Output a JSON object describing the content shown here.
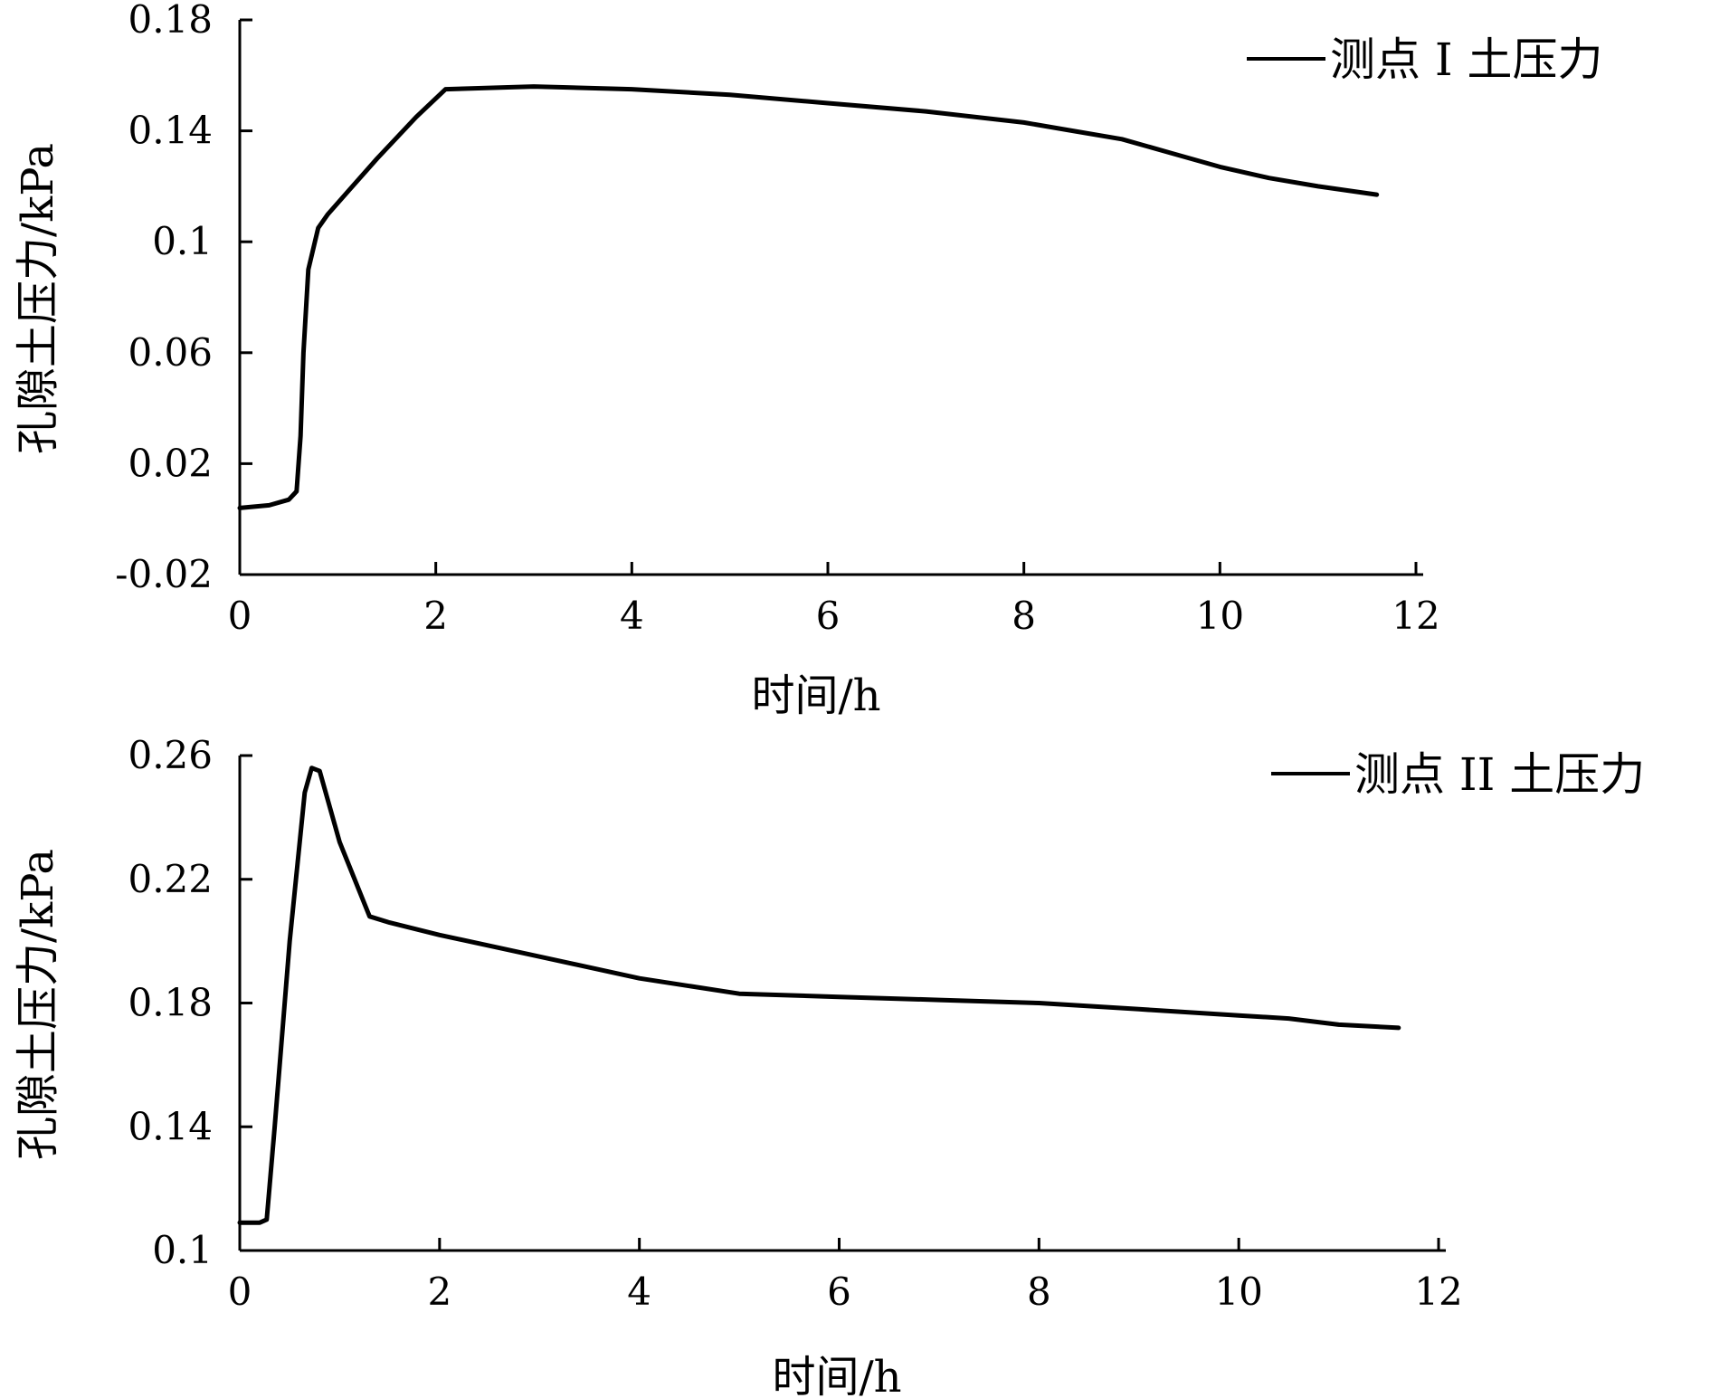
{
  "chart_data": [
    {
      "type": "line",
      "xlabel": "时间/h",
      "ylabel": "孔隙土压力/kPa",
      "xlim": [
        0,
        12
      ],
      "ylim": [
        -0.02,
        0.18
      ],
      "xticks": [
        0,
        2,
        4,
        6,
        8,
        10,
        12
      ],
      "xtick_labels": [
        "0",
        "2",
        "4",
        "6",
        "8",
        "10",
        "12"
      ],
      "yticks": [
        -0.02,
        0.02,
        0.06,
        0.1,
        0.14,
        0.18
      ],
      "ytick_labels": [
        "-0.02",
        "0.02",
        "0.06",
        "0.1",
        "0.14",
        "0.18"
      ],
      "grid": false,
      "legend_position": "top-right",
      "line_color": "#000000",
      "series": [
        {
          "name": "测点 I 土压力",
          "x": [
            0,
            0.3,
            0.5,
            0.58,
            0.62,
            0.65,
            0.7,
            0.8,
            0.9,
            1.1,
            1.4,
            1.8,
            2.1,
            3.0,
            4.0,
            5.0,
            6.0,
            7.0,
            8.0,
            8.5,
            9.0,
            9.5,
            10.0,
            10.5,
            11.0,
            11.6
          ],
          "y": [
            0.004,
            0.005,
            0.007,
            0.01,
            0.03,
            0.06,
            0.09,
            0.105,
            0.11,
            0.118,
            0.13,
            0.145,
            0.155,
            0.156,
            0.155,
            0.153,
            0.15,
            0.147,
            0.143,
            0.14,
            0.137,
            0.132,
            0.127,
            0.123,
            0.12,
            0.117
          ]
        }
      ]
    },
    {
      "type": "line",
      "xlabel": "时间/h",
      "ylabel": "孔隙土压力/kPa",
      "xlim": [
        0,
        12
      ],
      "ylim": [
        0.1,
        0.26
      ],
      "xticks": [
        0,
        2,
        4,
        6,
        8,
        10,
        12
      ],
      "xtick_labels": [
        "0",
        "2",
        "4",
        "6",
        "8",
        "10",
        "12"
      ],
      "yticks": [
        0.1,
        0.14,
        0.18,
        0.22,
        0.26
      ],
      "ytick_labels": [
        "0.1",
        "0.14",
        "0.18",
        "0.22",
        "0.26"
      ],
      "grid": false,
      "legend_position": "top-right",
      "line_color": "#000000",
      "series": [
        {
          "name": "测点 II 土压力",
          "x": [
            0,
            0.2,
            0.27,
            0.35,
            0.5,
            0.65,
            0.72,
            0.8,
            1.0,
            1.3,
            1.5,
            2.0,
            3.0,
            4.0,
            5.0,
            6.0,
            7.0,
            8.0,
            9.0,
            10.0,
            10.5,
            11.0,
            11.6
          ],
          "y": [
            0.109,
            0.109,
            0.11,
            0.14,
            0.2,
            0.248,
            0.256,
            0.255,
            0.232,
            0.208,
            0.206,
            0.202,
            0.195,
            0.188,
            0.183,
            0.182,
            0.181,
            0.18,
            0.178,
            0.176,
            0.175,
            0.173,
            0.172
          ]
        }
      ]
    }
  ]
}
